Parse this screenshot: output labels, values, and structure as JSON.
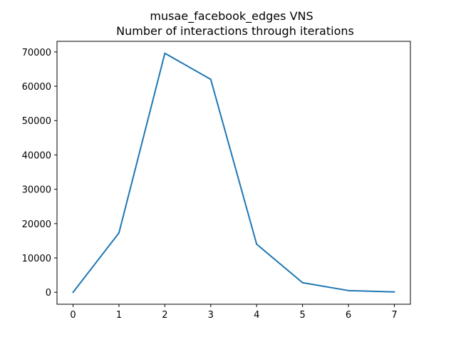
{
  "chart_data": {
    "type": "line",
    "title": "musae_facebook_edges VNS",
    "subtitle": "Number of interactions through iterations",
    "xlabel": "",
    "ylabel": "",
    "x": [
      0,
      1,
      2,
      3,
      4,
      5,
      6,
      7
    ],
    "series": [
      {
        "values": [
          0,
          17300,
          69600,
          62000,
          14000,
          2800,
          500,
          100
        ],
        "color": "#1f77b4"
      }
    ],
    "xlim": [
      -0.35,
      7.35
    ],
    "ylim": [
      -3480,
      73080
    ],
    "xticks": [
      0,
      1,
      2,
      3,
      4,
      5,
      6,
      7
    ],
    "yticks": [
      0,
      10000,
      20000,
      30000,
      40000,
      50000,
      60000,
      70000
    ],
    "grid": false,
    "legend": "none"
  }
}
